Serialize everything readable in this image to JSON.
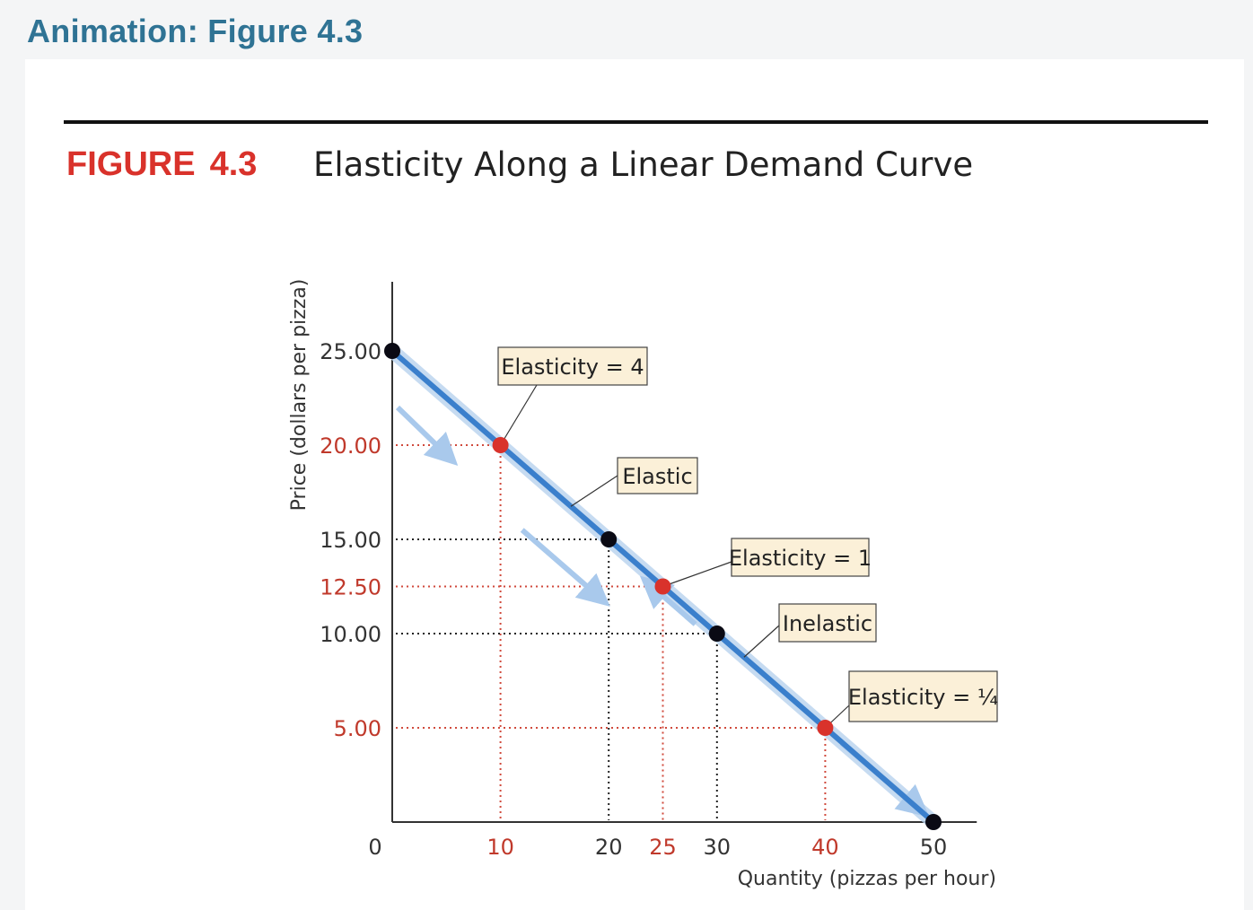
{
  "header": {
    "title": "Animation: Figure 4.3"
  },
  "figure": {
    "label": "FIGURE",
    "number": "4.3",
    "title": "Elasticity Along a Linear Demand Curve"
  },
  "colors": {
    "accent_title": "#2f7394",
    "figure_label": "#d9322b",
    "curve": "#3a7fcc",
    "curve_glow": "#b9d3ee",
    "red_point": "#d9322b",
    "black_point": "#0a0a14",
    "annotation_bg": "#fbf0d8"
  },
  "chart_data": {
    "type": "line",
    "xlabel": "Quantity (pizzas per hour)",
    "ylabel": "Price (dollars per pizza)",
    "xlim": [
      0,
      54
    ],
    "ylim": [
      0,
      25
    ],
    "x_ticks": [
      {
        "value": 0,
        "label": "0",
        "highlight": false
      },
      {
        "value": 10,
        "label": "10",
        "highlight": true
      },
      {
        "value": 20,
        "label": "20",
        "highlight": false
      },
      {
        "value": 25,
        "label": "25",
        "highlight": true
      },
      {
        "value": 30,
        "label": "30",
        "highlight": false
      },
      {
        "value": 40,
        "label": "40",
        "highlight": true
      },
      {
        "value": 50,
        "label": "50",
        "highlight": false
      }
    ],
    "y_ticks": [
      {
        "value": 25,
        "label": "25.00",
        "highlight": false
      },
      {
        "value": 20,
        "label": "20.00",
        "highlight": true
      },
      {
        "value": 15,
        "label": "15.00",
        "highlight": false
      },
      {
        "value": 12.5,
        "label": "12.50",
        "highlight": true
      },
      {
        "value": 10,
        "label": "10.00",
        "highlight": false
      },
      {
        "value": 5,
        "label": "5.00",
        "highlight": true
      }
    ],
    "series": [
      {
        "name": "",
        "x": [
          0,
          50
        ],
        "y": [
          25,
          0
        ]
      }
    ],
    "points": [
      {
        "x": 0,
        "y": 25,
        "color": "black"
      },
      {
        "x": 10,
        "y": 20,
        "color": "red"
      },
      {
        "x": 20,
        "y": 15,
        "color": "black"
      },
      {
        "x": 25,
        "y": 12.5,
        "color": "red"
      },
      {
        "x": 30,
        "y": 10,
        "color": "black"
      },
      {
        "x": 40,
        "y": 5,
        "color": "red"
      },
      {
        "x": 50,
        "y": 0,
        "color": "black"
      }
    ],
    "annotations": [
      {
        "text": "Elasticity = 4",
        "target": {
          "x": 10,
          "y": 20
        }
      },
      {
        "text": "Elastic",
        "target": {
          "x": 16.5,
          "y": 16.75
        }
      },
      {
        "text": "Elasticity = 1",
        "target": {
          "x": 25,
          "y": 12.5
        }
      },
      {
        "text": "Inelastic",
        "target": {
          "x": 32.5,
          "y": 8.75
        }
      },
      {
        "text": "Elasticity = ¼",
        "target": {
          "x": 40,
          "y": 5
        }
      }
    ],
    "grid": false
  }
}
